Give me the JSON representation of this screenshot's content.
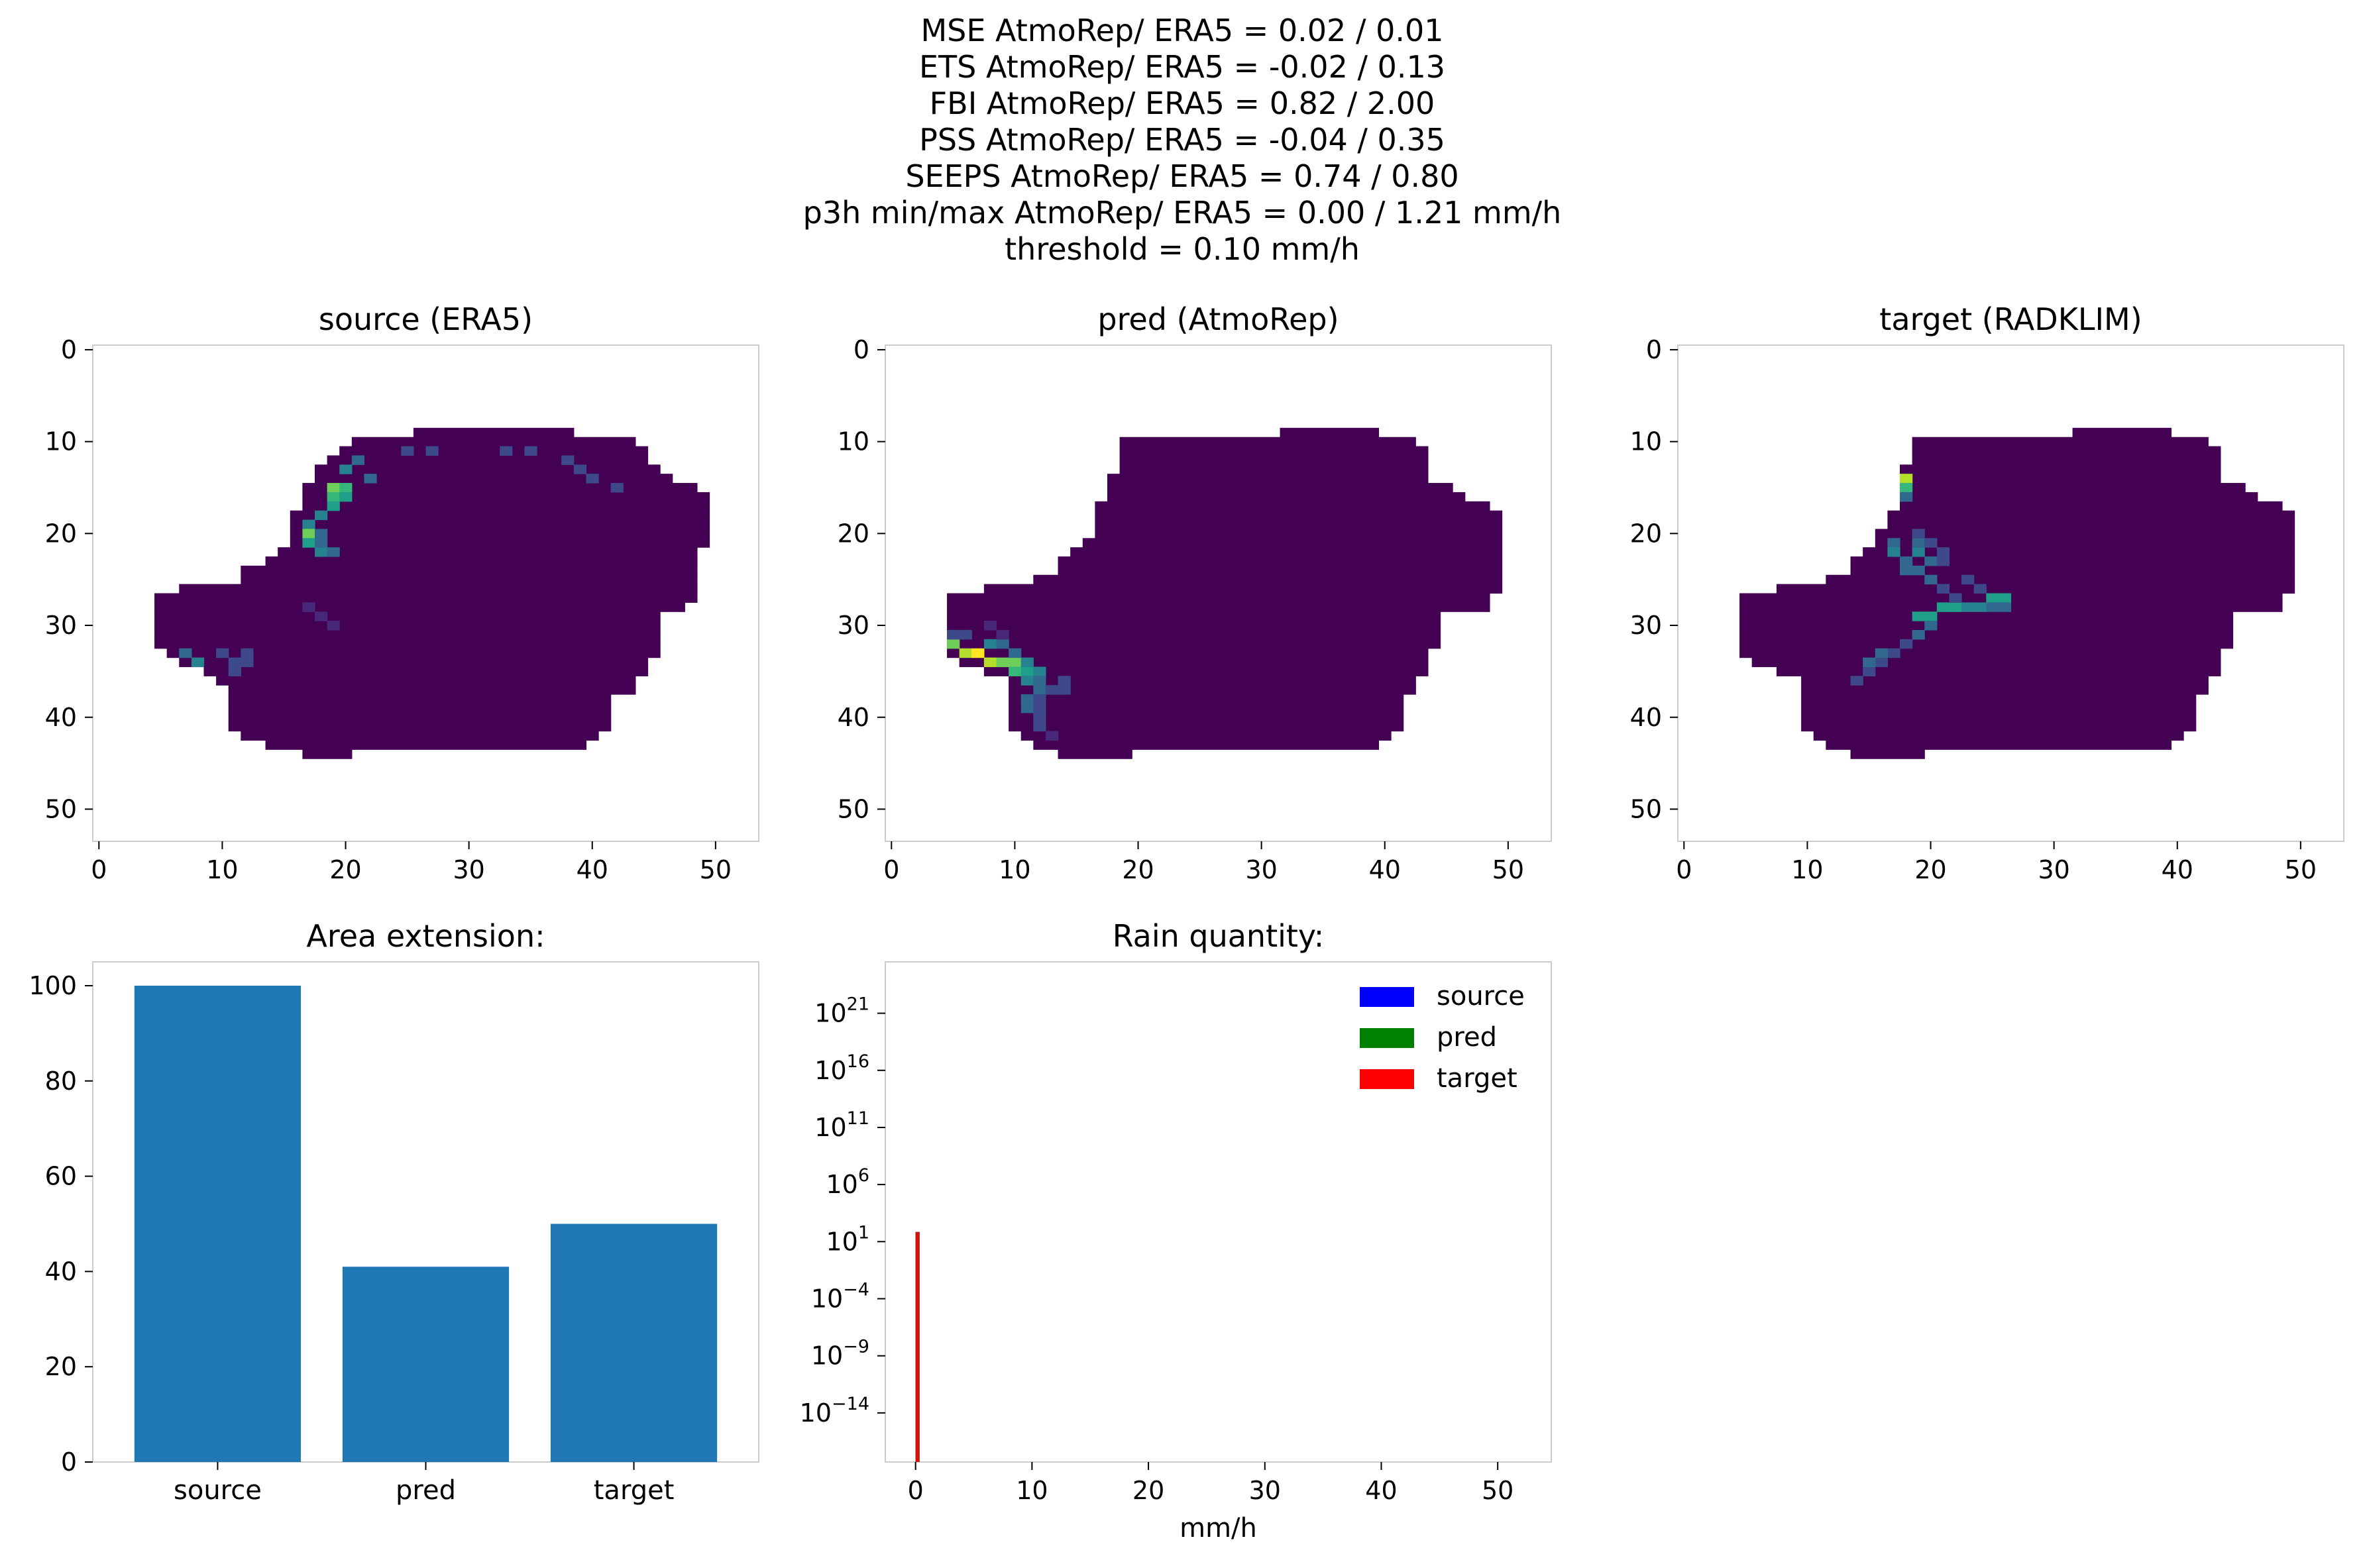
{
  "suptitle": [
    "MSE AtmoRep/ ERA5 = 0.02 / 0.01",
    "ETS AtmoRep/ ERA5 = -0.02 / 0.13",
    "FBI AtmoRep/ ERA5 = 0.82 / 2.00",
    "PSS AtmoRep/ ERA5 = -0.04 / 0.35",
    "SEEPS AtmoRep/ ERA5 = 0.74 / 0.80",
    "p3h min/max AtmoRep/ ERA5 = 0.00 / 1.21 mm/h",
    "threshold = 0.10 mm/h"
  ],
  "colors": {
    "bar": "#1f77b4",
    "map_background": "#440154",
    "viridis": [
      "#440154",
      "#482878",
      "#3e4989",
      "#31688e",
      "#26828e",
      "#1f9e89",
      "#35b779",
      "#6ece58",
      "#b5de2b",
      "#fde725"
    ],
    "source": "#0000ff",
    "pred": "#008000",
    "target": "#ff0000",
    "spine": "#cccccc"
  },
  "chart_data": [
    {
      "type": "heatmap",
      "title": "source (ERA5)",
      "xticks": [
        0,
        10,
        20,
        30,
        40,
        50
      ],
      "yticks": [
        0,
        10,
        20,
        30,
        40,
        50
      ],
      "xlim": [
        -0.5,
        53.5
      ],
      "ylim": [
        53.5,
        -0.5
      ],
      "mask_rows": [
        [
          9,
          26,
          38
        ],
        [
          10,
          21,
          43
        ],
        [
          11,
          20,
          44
        ],
        [
          12,
          19,
          44
        ],
        [
          13,
          18,
          45
        ],
        [
          14,
          18,
          46
        ],
        [
          15,
          17,
          48
        ],
        [
          16,
          17,
          49
        ],
        [
          17,
          17,
          49
        ],
        [
          18,
          16,
          49
        ],
        [
          19,
          16,
          49
        ],
        [
          20,
          16,
          49
        ],
        [
          21,
          16,
          49
        ],
        [
          22,
          15,
          48
        ],
        [
          23,
          14,
          48
        ],
        [
          24,
          12,
          48
        ],
        [
          25,
          12,
          48
        ],
        [
          26,
          7,
          48
        ],
        [
          27,
          5,
          48
        ],
        [
          28,
          5,
          47
        ],
        [
          29,
          5,
          45
        ],
        [
          30,
          5,
          45
        ],
        [
          31,
          5,
          45
        ],
        [
          32,
          5,
          45
        ],
        [
          33,
          6,
          45
        ],
        [
          34,
          7,
          44
        ],
        [
          35,
          9,
          44
        ],
        [
          36,
          10,
          43
        ],
        [
          37,
          11,
          43
        ],
        [
          38,
          11,
          41
        ],
        [
          39,
          11,
          41
        ],
        [
          40,
          11,
          41
        ],
        [
          41,
          11,
          41
        ],
        [
          42,
          12,
          40
        ],
        [
          43,
          14,
          39
        ],
        [
          44,
          17,
          20
        ]
      ],
      "highlights": [
        [
          15,
          19,
          7
        ],
        [
          15,
          20,
          6
        ],
        [
          16,
          19,
          6
        ],
        [
          16,
          20,
          5
        ],
        [
          17,
          19,
          5
        ],
        [
          18,
          18,
          4
        ],
        [
          19,
          17,
          4
        ],
        [
          20,
          17,
          7
        ],
        [
          21,
          17,
          5
        ],
        [
          22,
          18,
          4
        ],
        [
          13,
          20,
          4
        ],
        [
          12,
          21,
          3
        ],
        [
          14,
          22,
          3
        ],
        [
          20,
          18,
          3
        ],
        [
          21,
          18,
          3
        ],
        [
          22,
          19,
          3
        ],
        [
          11,
          25,
          2
        ],
        [
          11,
          27,
          2
        ],
        [
          11,
          33,
          2
        ],
        [
          11,
          35,
          2
        ],
        [
          12,
          38,
          2
        ],
        [
          13,
          39,
          2
        ],
        [
          14,
          40,
          2
        ],
        [
          15,
          42,
          2
        ],
        [
          34,
          8,
          4
        ],
        [
          33,
          7,
          3
        ],
        [
          33,
          10,
          2
        ],
        [
          34,
          11,
          2
        ],
        [
          35,
          11,
          2
        ],
        [
          33,
          12,
          2
        ],
        [
          34,
          12,
          2
        ],
        [
          28,
          17,
          1
        ],
        [
          29,
          18,
          1
        ],
        [
          30,
          19,
          1
        ]
      ]
    },
    {
      "type": "heatmap",
      "title": "pred (AtmoRep)",
      "xticks": [
        0,
        10,
        20,
        30,
        40,
        50
      ],
      "yticks": [
        0,
        10,
        20,
        30,
        40,
        50
      ],
      "xlim": [
        -0.5,
        53.5
      ],
      "ylim": [
        53.5,
        -0.5
      ],
      "mask_rows": [
        [
          9,
          32,
          39
        ],
        [
          10,
          19,
          42
        ],
        [
          11,
          19,
          43
        ],
        [
          12,
          19,
          43
        ],
        [
          13,
          19,
          43
        ],
        [
          14,
          18,
          43
        ],
        [
          15,
          18,
          45
        ],
        [
          16,
          18,
          46
        ],
        [
          17,
          17,
          48
        ],
        [
          18,
          17,
          49
        ],
        [
          19,
          17,
          49
        ],
        [
          20,
          17,
          49
        ],
        [
          21,
          16,
          49
        ],
        [
          22,
          15,
          49
        ],
        [
          23,
          14,
          49
        ],
        [
          24,
          14,
          49
        ],
        [
          25,
          12,
          49
        ],
        [
          26,
          8,
          49
        ],
        [
          27,
          5,
          48
        ],
        [
          28,
          5,
          48
        ],
        [
          29,
          5,
          44
        ],
        [
          30,
          5,
          44
        ],
        [
          31,
          5,
          44
        ],
        [
          32,
          5,
          44
        ],
        [
          33,
          5,
          43
        ],
        [
          34,
          6,
          43
        ],
        [
          35,
          8,
          43
        ],
        [
          36,
          10,
          42
        ],
        [
          37,
          10,
          42
        ],
        [
          38,
          10,
          41
        ],
        [
          39,
          10,
          41
        ],
        [
          40,
          10,
          41
        ],
        [
          41,
          10,
          41
        ],
        [
          42,
          11,
          40
        ],
        [
          43,
          12,
          39
        ],
        [
          44,
          14,
          19
        ]
      ],
      "highlights": [
        [
          32,
          5,
          7
        ],
        [
          33,
          6,
          8
        ],
        [
          33,
          7,
          9
        ],
        [
          34,
          8,
          8
        ],
        [
          34,
          9,
          7
        ],
        [
          34,
          10,
          7
        ],
        [
          35,
          10,
          6
        ],
        [
          35,
          11,
          5
        ],
        [
          36,
          11,
          4
        ],
        [
          32,
          8,
          4
        ],
        [
          32,
          9,
          3
        ],
        [
          33,
          10,
          3
        ],
        [
          34,
          11,
          4
        ],
        [
          35,
          12,
          4
        ],
        [
          36,
          12,
          3
        ],
        [
          37,
          12,
          3
        ],
        [
          38,
          11,
          3
        ],
        [
          39,
          11,
          3
        ],
        [
          37,
          13,
          2
        ],
        [
          38,
          12,
          2
        ],
        [
          31,
          5,
          2
        ],
        [
          31,
          6,
          2
        ],
        [
          30,
          8,
          1
        ],
        [
          31,
          9,
          1
        ],
        [
          36,
          14,
          2
        ],
        [
          37,
          14,
          2
        ],
        [
          39,
          12,
          2
        ],
        [
          40,
          12,
          2
        ],
        [
          41,
          12,
          2
        ],
        [
          42,
          13,
          1
        ]
      ]
    },
    {
      "type": "heatmap",
      "title": "target (RADKLIM)",
      "xticks": [
        0,
        10,
        20,
        30,
        40,
        50
      ],
      "yticks": [
        0,
        10,
        20,
        30,
        40,
        50
      ],
      "xlim": [
        -0.5,
        53.5
      ],
      "ylim": [
        53.5,
        -0.5
      ],
      "mask_rows": [
        [
          9,
          32,
          39
        ],
        [
          10,
          19,
          42
        ],
        [
          11,
          19,
          43
        ],
        [
          12,
          19,
          43
        ],
        [
          13,
          18,
          43
        ],
        [
          14,
          18,
          43
        ],
        [
          15,
          18,
          45
        ],
        [
          16,
          18,
          46
        ],
        [
          17,
          18,
          48
        ],
        [
          18,
          17,
          49
        ],
        [
          19,
          17,
          49
        ],
        [
          20,
          16,
          49
        ],
        [
          21,
          16,
          49
        ],
        [
          22,
          15,
          49
        ],
        [
          23,
          14,
          49
        ],
        [
          24,
          14,
          49
        ],
        [
          25,
          12,
          49
        ],
        [
          26,
          8,
          49
        ],
        [
          27,
          5,
          48
        ],
        [
          28,
          5,
          48
        ],
        [
          29,
          5,
          44
        ],
        [
          30,
          5,
          44
        ],
        [
          31,
          5,
          44
        ],
        [
          32,
          5,
          44
        ],
        [
          33,
          5,
          43
        ],
        [
          34,
          6,
          43
        ],
        [
          35,
          8,
          43
        ],
        [
          36,
          10,
          42
        ],
        [
          37,
          10,
          42
        ],
        [
          38,
          10,
          41
        ],
        [
          39,
          10,
          41
        ],
        [
          40,
          10,
          41
        ],
        [
          41,
          10,
          41
        ],
        [
          42,
          11,
          40
        ],
        [
          43,
          12,
          39
        ],
        [
          44,
          14,
          19
        ]
      ],
      "highlights": [
        [
          14,
          18,
          8
        ],
        [
          15,
          18,
          6
        ],
        [
          16,
          18,
          3
        ],
        [
          21,
          17,
          3
        ],
        [
          22,
          17,
          4
        ],
        [
          22,
          19,
          4
        ],
        [
          23,
          18,
          3
        ],
        [
          23,
          20,
          3
        ],
        [
          24,
          18,
          3
        ],
        [
          24,
          19,
          3
        ],
        [
          25,
          20,
          3
        ],
        [
          21,
          19,
          3
        ],
        [
          20,
          19,
          2
        ],
        [
          21,
          20,
          2
        ],
        [
          22,
          21,
          2
        ],
        [
          23,
          21,
          2
        ],
        [
          28,
          21,
          5
        ],
        [
          28,
          22,
          5
        ],
        [
          28,
          23,
          4
        ],
        [
          28,
          24,
          4
        ],
        [
          27,
          25,
          5
        ],
        [
          27,
          26,
          5
        ],
        [
          28,
          25,
          3
        ],
        [
          28,
          26,
          3
        ],
        [
          29,
          19,
          5
        ],
        [
          29,
          20,
          5
        ],
        [
          30,
          20,
          3
        ],
        [
          31,
          19,
          3
        ],
        [
          32,
          18,
          2
        ],
        [
          33,
          17,
          2
        ],
        [
          34,
          16,
          2
        ],
        [
          35,
          15,
          2
        ],
        [
          36,
          14,
          2
        ],
        [
          33,
          16,
          3
        ],
        [
          34,
          15,
          3
        ],
        [
          26,
          21,
          2
        ],
        [
          27,
          22,
          2
        ],
        [
          26,
          24,
          2
        ],
        [
          25,
          23,
          2
        ]
      ]
    },
    {
      "type": "bar",
      "title": "Area extension:",
      "categories": [
        "source",
        "pred",
        "target"
      ],
      "values": [
        100,
        41,
        50
      ],
      "ylim": [
        0,
        105
      ],
      "yticks": [
        0,
        20,
        40,
        60,
        80,
        100
      ]
    },
    {
      "type": "bar",
      "title": "Rain quantity:",
      "xlabel": "mm/h",
      "xticks": [
        0,
        10,
        20,
        30,
        40,
        50
      ],
      "xlim": [
        -2.6,
        54.6
      ],
      "yscale": "log",
      "yticks_exponents": [
        -14,
        -9,
        -4,
        1,
        6,
        11,
        16,
        21
      ],
      "ylim_exponents": [
        -18.3,
        25.5
      ],
      "legend_position": "upper right",
      "series": [
        {
          "name": "source",
          "bins": [
            [
              0.0,
              0.1,
              70
            ]
          ]
        },
        {
          "name": "pred",
          "bins": [
            [
              0.0,
              0.1,
              70
            ]
          ]
        },
        {
          "name": "target",
          "bins": [
            [
              0.0,
              0.1,
              70
            ]
          ]
        }
      ]
    }
  ]
}
